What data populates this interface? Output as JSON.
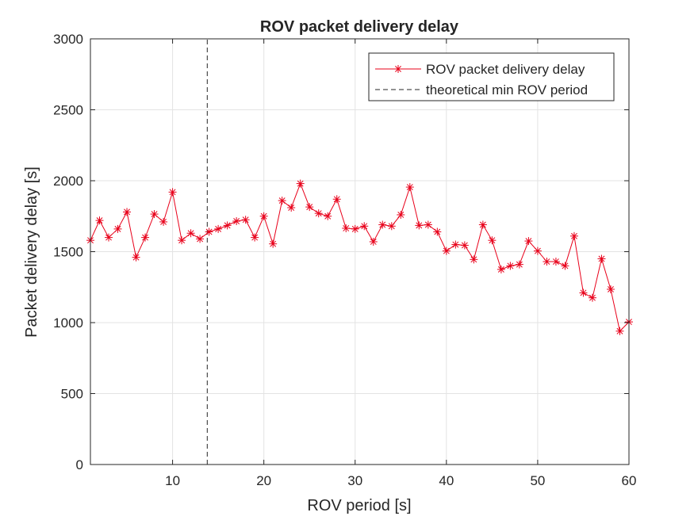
{
  "chart_data": {
    "type": "line",
    "title": "ROV packet delivery delay",
    "xlabel": "ROV period [s]",
    "ylabel": "Packet delivery delay [s]",
    "xlim": [
      1,
      60
    ],
    "ylim": [
      0,
      3000
    ],
    "xticks": [
      10,
      20,
      30,
      40,
      50,
      60
    ],
    "yticks": [
      0,
      500,
      1000,
      1500,
      2000,
      2500,
      3000
    ],
    "grid": true,
    "legend_position": "top-right",
    "series": [
      {
        "name": "ROV packet delivery delay",
        "color": "#e8001a",
        "marker": "asterisk",
        "x": [
          1,
          2,
          3,
          4,
          5,
          6,
          7,
          8,
          9,
          10,
          11,
          12,
          13,
          14,
          15,
          16,
          17,
          18,
          19,
          20,
          21,
          22,
          23,
          24,
          25,
          26,
          27,
          28,
          29,
          30,
          31,
          32,
          33,
          34,
          35,
          36,
          37,
          38,
          39,
          40,
          41,
          42,
          43,
          44,
          45,
          46,
          47,
          48,
          49,
          50,
          51,
          52,
          53,
          54,
          55,
          56,
          57,
          58,
          59,
          60
        ],
        "y": [
          1580,
          1720,
          1600,
          1660,
          1780,
          1460,
          1600,
          1765,
          1710,
          1920,
          1580,
          1630,
          1590,
          1640,
          1660,
          1685,
          1715,
          1725,
          1600,
          1750,
          1555,
          1860,
          1810,
          1980,
          1815,
          1770,
          1750,
          1870,
          1665,
          1660,
          1680,
          1570,
          1690,
          1680,
          1760,
          1955,
          1685,
          1690,
          1640,
          1505,
          1550,
          1545,
          1445,
          1690,
          1580,
          1375,
          1400,
          1410,
          1575,
          1505,
          1430,
          1430,
          1400,
          1610,
          1210,
          1175,
          1450,
          1235,
          940,
          1005
        ]
      },
      {
        "name": "theoretical min ROV period",
        "color": "#262626",
        "style": "dashed",
        "x": [
          13.8,
          13.8
        ],
        "y": [
          0,
          3000
        ]
      }
    ]
  }
}
